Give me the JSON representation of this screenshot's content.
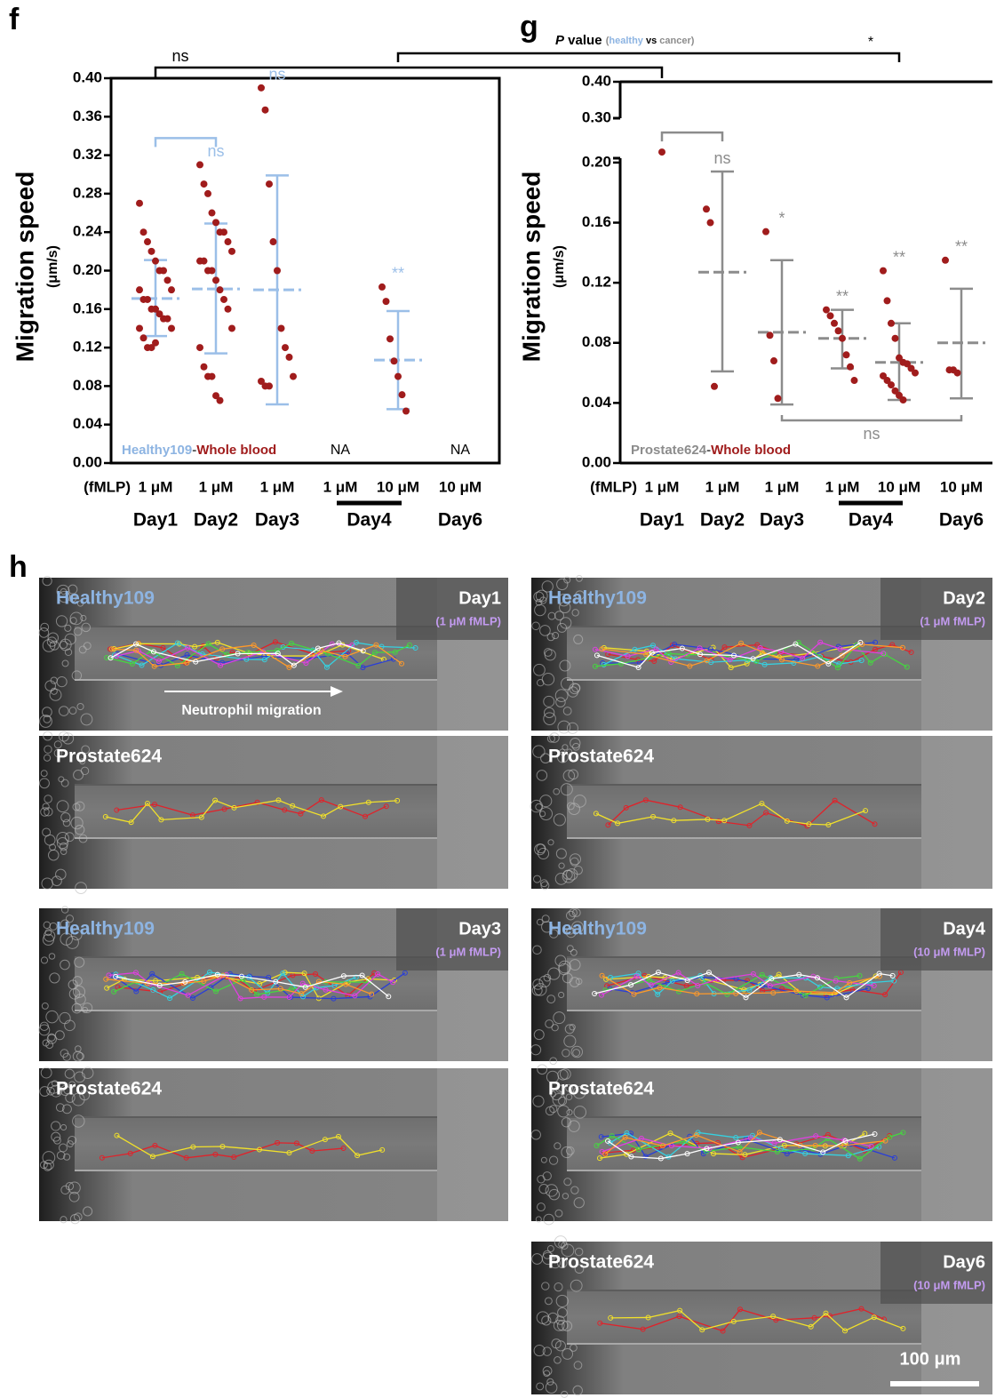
{
  "chart_data": [
    {
      "type": "scatter",
      "panel": "f",
      "y_label": "Migration speed",
      "y_unit": "(μm/s)",
      "x_prefix": "(fMLP)",
      "categories": [
        "1 μM",
        "1 μM",
        "1 μM",
        "1 μM",
        "10 μM",
        "10 μM"
      ],
      "days": [
        {
          "label": "Day1",
          "span": [
            0,
            0
          ]
        },
        {
          "label": "Day2",
          "span": [
            1,
            1
          ]
        },
        {
          "label": "Day3",
          "span": [
            2,
            2
          ]
        },
        {
          "label": "Day4",
          "span": [
            3,
            4
          ]
        },
        {
          "label": "Day6",
          "span": [
            5,
            5
          ]
        }
      ],
      "sample": [
        {
          "text": "Healthy109",
          "color": "#8db4e2"
        },
        {
          "text": "-",
          "color": "#555555"
        },
        {
          "text": "Whole blood",
          "color": "#a01c1c"
        }
      ],
      "point_color": "#a01c1c",
      "summary_color": "#9bbfe8",
      "ylim": [
        0,
        0.4
      ],
      "yticks": [
        {
          "value": 0,
          "label": "0.00"
        },
        {
          "value": 0.04,
          "label": "0.04"
        },
        {
          "value": 0.08,
          "label": "0.08"
        },
        {
          "value": 0.12,
          "label": "0.12"
        },
        {
          "value": 0.16,
          "label": "0.16"
        },
        {
          "value": 0.2,
          "label": "0.20"
        },
        {
          "value": 0.24,
          "label": "0.24"
        },
        {
          "value": 0.28,
          "label": "0.28"
        },
        {
          "value": 0.32,
          "label": "0.32"
        },
        {
          "value": 0.36,
          "label": "0.36"
        },
        {
          "value": 0.4,
          "label": "0.40"
        }
      ],
      "groups": [
        {
          "points": [
            0.27,
            0.24,
            0.23,
            0.22,
            0.21,
            0.2,
            0.2,
            0.19,
            0.18,
            0.18,
            0.17,
            0.17,
            0.16,
            0.16,
            0.155,
            0.15,
            0.15,
            0.14,
            0.14,
            0.13,
            0.12,
            0.12,
            0.125
          ],
          "mean": 0.171,
          "sd": [
            0.132,
            0.211
          ]
        },
        {
          "points": [
            0.31,
            0.29,
            0.28,
            0.26,
            0.25,
            0.24,
            0.24,
            0.23,
            0.22,
            0.21,
            0.21,
            0.2,
            0.2,
            0.19,
            0.18,
            0.17,
            0.16,
            0.14,
            0.12,
            0.1,
            0.09,
            0.09,
            0.07,
            0.065
          ],
          "mean": 0.181,
          "sd": [
            0.114,
            0.249
          ],
          "sig": "ns"
        },
        {
          "points": [
            0.39,
            0.367,
            0.29,
            0.23,
            0.2,
            0.14,
            0.12,
            0.11,
            0.09,
            0.085,
            0.08,
            0.08
          ],
          "mean": 0.18,
          "sd": [
            0.061,
            0.299
          ],
          "sig": "ns"
        },
        {
          "points": [],
          "note": "NA"
        },
        {
          "points": [
            0.183,
            0.168,
            0.129,
            0.106,
            0.09,
            0.071,
            0.054
          ],
          "mean": 0.107,
          "sd": [
            0.056,
            0.158
          ],
          "sig": "**"
        },
        {
          "points": [],
          "note": "NA"
        }
      ],
      "brackets": [
        {
          "from": 0,
          "to": 1,
          "side": "above"
        }
      ]
    },
    {
      "type": "scatter",
      "panel": "g",
      "y_label": "Migration speed",
      "y_unit": "(μm/s)",
      "x_prefix": "(fMLP)",
      "categories": [
        "1 μM",
        "1 μM",
        "1 μM",
        "1 μM",
        "10 μM",
        "10 μM"
      ],
      "days": [
        {
          "label": "Day1",
          "span": [
            0,
            0
          ]
        },
        {
          "label": "Day2",
          "span": [
            1,
            1
          ]
        },
        {
          "label": "Day3",
          "span": [
            2,
            2
          ]
        },
        {
          "label": "Day4",
          "span": [
            3,
            4
          ]
        },
        {
          "label": "Day6",
          "span": [
            5,
            5
          ]
        }
      ],
      "sample": [
        {
          "text": "Prostate624",
          "color": "#8c8c8c"
        },
        {
          "text": "-",
          "color": "#555555"
        },
        {
          "text": "Whole blood",
          "color": "#a01c1c"
        }
      ],
      "point_color": "#a01c1c",
      "summary_color": "#8c8c8c",
      "ylim": [
        0,
        0.4
      ],
      "axis_break": [
        0.21,
        0.29
      ],
      "yticks": [
        {
          "value": 0,
          "label": "0.00"
        },
        {
          "value": 0.04,
          "label": "0.04"
        },
        {
          "value": 0.08,
          "label": "0.08"
        },
        {
          "value": 0.12,
          "label": "0.12"
        },
        {
          "value": 0.16,
          "label": "0.16"
        },
        {
          "value": 0.2,
          "label": "0.20"
        },
        {
          "value": 0.3,
          "label": "0.30"
        },
        {
          "value": 0.4,
          "label": "0.40"
        }
      ],
      "groups": [
        {
          "points": [
            0.207
          ]
        },
        {
          "points": [
            0.169,
            0.16,
            0.051
          ],
          "mean": 0.127,
          "sd": [
            0.061,
            0.194
          ],
          "sig": "ns"
        },
        {
          "points": [
            0.154,
            0.085,
            0.068,
            0.043
          ],
          "mean": 0.087,
          "sd": [
            0.039,
            0.135
          ],
          "sig": "*"
        },
        {
          "points": [
            0.102,
            0.098,
            0.093,
            0.088,
            0.083,
            0.072,
            0.064,
            0.055
          ],
          "mean": 0.083,
          "sd": [
            0.063,
            0.102
          ],
          "sig": "**"
        },
        {
          "points": [
            0.128,
            0.108,
            0.093,
            0.083,
            0.07,
            0.067,
            0.066,
            0.063,
            0.06,
            0.058,
            0.055,
            0.052,
            0.048,
            0.045,
            0.042
          ],
          "mean": 0.067,
          "sd": [
            0.042,
            0.093
          ],
          "sig": "**"
        },
        {
          "points": [
            0.135,
            0.062,
            0.062,
            0.06
          ],
          "mean": 0.08,
          "sd": [
            0.043,
            0.116
          ],
          "sig": "**"
        }
      ],
      "brackets": [
        {
          "from": 0,
          "to": 1,
          "side": "above"
        },
        {
          "from": 2,
          "to": 5,
          "side": "below",
          "label": "ns"
        }
      ]
    }
  ],
  "cross_brackets": [
    {
      "label": "ns",
      "from": [
        0,
        0
      ],
      "to": [
        1,
        0
      ]
    },
    {
      "label": "*",
      "from": [
        0,
        4
      ],
      "to": [
        1,
        4
      ]
    }
  ],
  "pvalue_title": [
    {
      "text": "P",
      "color": "#000000",
      "italic": true
    },
    {
      "text": " value ",
      "color": "#000000"
    },
    {
      "text": "(",
      "color": "#8c8c8c",
      "small": true
    },
    {
      "text": "healthy",
      "color": "#8db4e2",
      "small": true
    },
    {
      "text": " vs ",
      "color": "#000000",
      "small": true
    },
    {
      "text": "cancer",
      "color": "#8c8c8c",
      "small": true
    },
    {
      "text": ")",
      "color": "#8c8c8c",
      "small": true
    }
  ],
  "panel_h": {
    "label": "h",
    "sample_colors": {
      "Healthy109": "#8db4e2",
      "Prostate624": "#ffffff"
    },
    "images": [
      {
        "sample": "Healthy109",
        "day": "Day1",
        "condition": "(1 μM fMLP)",
        "annotation": "Neutrophil migration"
      },
      {
        "sample": "Prostate624"
      },
      {
        "sample": "Healthy109",
        "day": "Day2",
        "condition": "(1 μM fMLP)"
      },
      {
        "sample": "Prostate624"
      },
      {
        "sample": "Healthy109",
        "day": "Day3",
        "condition": "(1 μM fMLP)"
      },
      {
        "sample": "Prostate624"
      },
      {
        "sample": "Healthy109",
        "day": "Day4",
        "condition": "(10 μM fMLP)"
      },
      {
        "sample": "Prostate624"
      },
      {
        "sample": "Prostate624",
        "day": "Day6",
        "condition": "(10 μM fMLP)",
        "scale_bar": "100 μm"
      }
    ]
  }
}
